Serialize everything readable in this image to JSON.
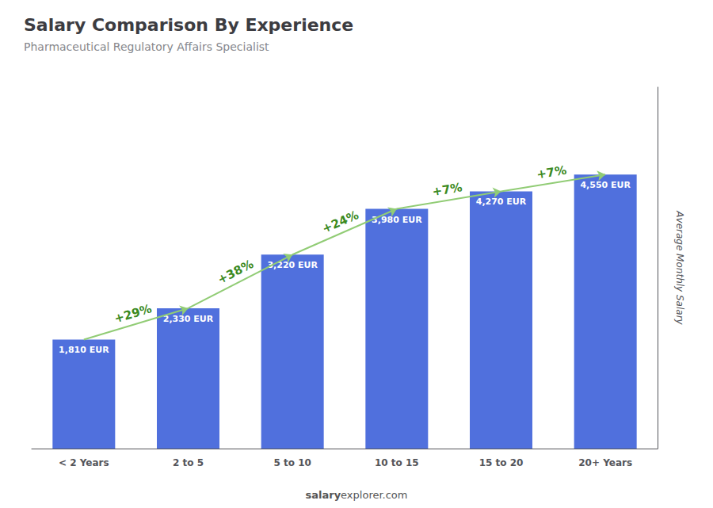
{
  "chart_data": {
    "type": "bar",
    "title": "Salary Comparison By Experience",
    "subtitle": "Pharmaceutical Regulatory Affairs Specialist",
    "categories": [
      "< 2 Years",
      "2 to 5",
      "5 to 10",
      "10 to 15",
      "15 to 20",
      "20+ Years"
    ],
    "values": [
      1810,
      2330,
      3220,
      3980,
      4270,
      4550
    ],
    "value_labels": [
      "1,810 EUR",
      "2,330 EUR",
      "3,220 EUR",
      "3,980 EUR",
      "4,270 EUR",
      "4,550 EUR"
    ],
    "data_labels": true,
    "ylabel": "Average Monthly Salary",
    "ylim": [
      0,
      6000
    ],
    "tick_labels": "x",
    "grid": false,
    "annotations": [
      {
        "text": "+29%",
        "from": "< 2 Years",
        "to": "2 to 5"
      },
      {
        "text": "+38%",
        "from": "2 to 5",
        "to": "5 to 10"
      },
      {
        "text": "+24%",
        "from": "5 to 10",
        "to": "10 to 15"
      },
      {
        "text": "+7%",
        "from": "10 to 15",
        "to": "15 to 20"
      },
      {
        "text": "+7%",
        "from": "15 to 20",
        "to": "20+ Years"
      }
    ],
    "watermark": {
      "bold": "salary",
      "normal": "explorer.com"
    }
  }
}
